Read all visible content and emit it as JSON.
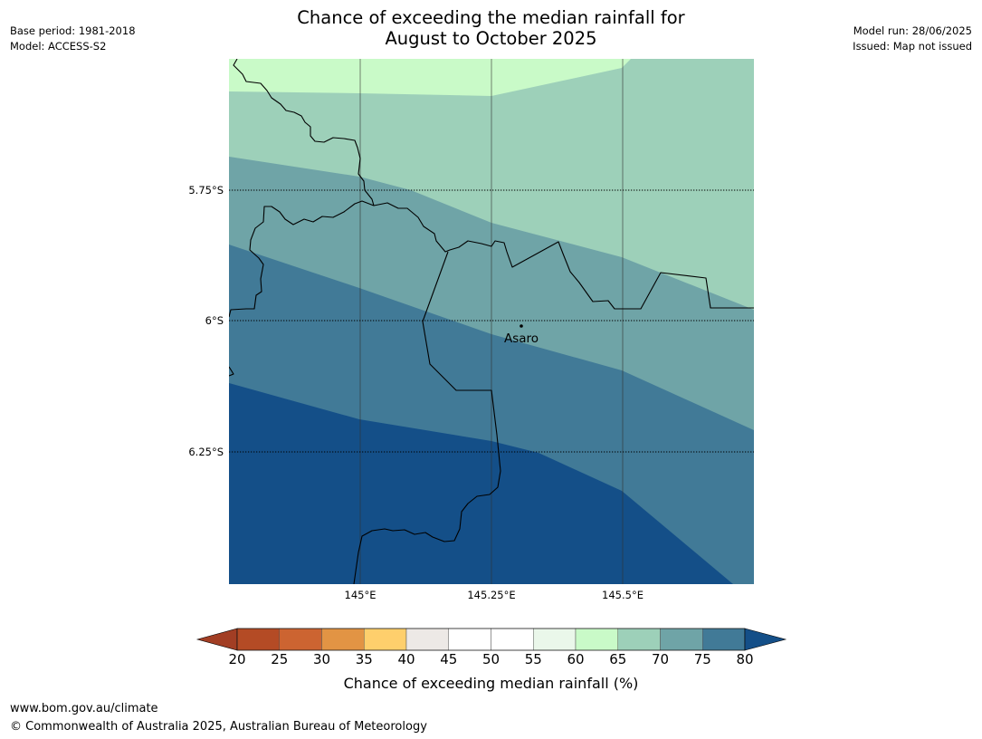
{
  "title": {
    "line1": "Chance of exceeding the median rainfall for",
    "line2": "August to October 2025"
  },
  "meta": {
    "base_period": "Base period: 1981-2018",
    "model": "Model: ACCESS-S2",
    "model_run": "Model run: 28/06/2025",
    "issued": "Issued: Map not issued"
  },
  "map": {
    "latitude_labels": [
      "5.75°S",
      "6°S",
      "6.25°S"
    ],
    "longitude_labels": [
      "145°E",
      "145.25°E",
      "145.5°E"
    ],
    "places": [
      {
        "name": "Asaro"
      }
    ]
  },
  "colorbar": {
    "ticks": [
      "20",
      "25",
      "30",
      "35",
      "40",
      "45",
      "50",
      "55",
      "60",
      "65",
      "70",
      "75",
      "80"
    ],
    "colors": [
      "#a23e24",
      "#b44b25",
      "#cc6431",
      "#e29444",
      "#fecf6c",
      "#ede9e6",
      "#ffffff",
      "#ffffff",
      "#eaf7ea",
      "#c9fac8",
      "#9dd0b9",
      "#6fa4a7",
      "#417a97",
      "#144f88"
    ],
    "label": "Chance of exceeding median rainfall (%)"
  },
  "footer": {
    "url": "www.bom.gov.au/climate",
    "copyright": "© Commonwealth of Australia 2025, Australian Bureau of Meteorology"
  }
}
